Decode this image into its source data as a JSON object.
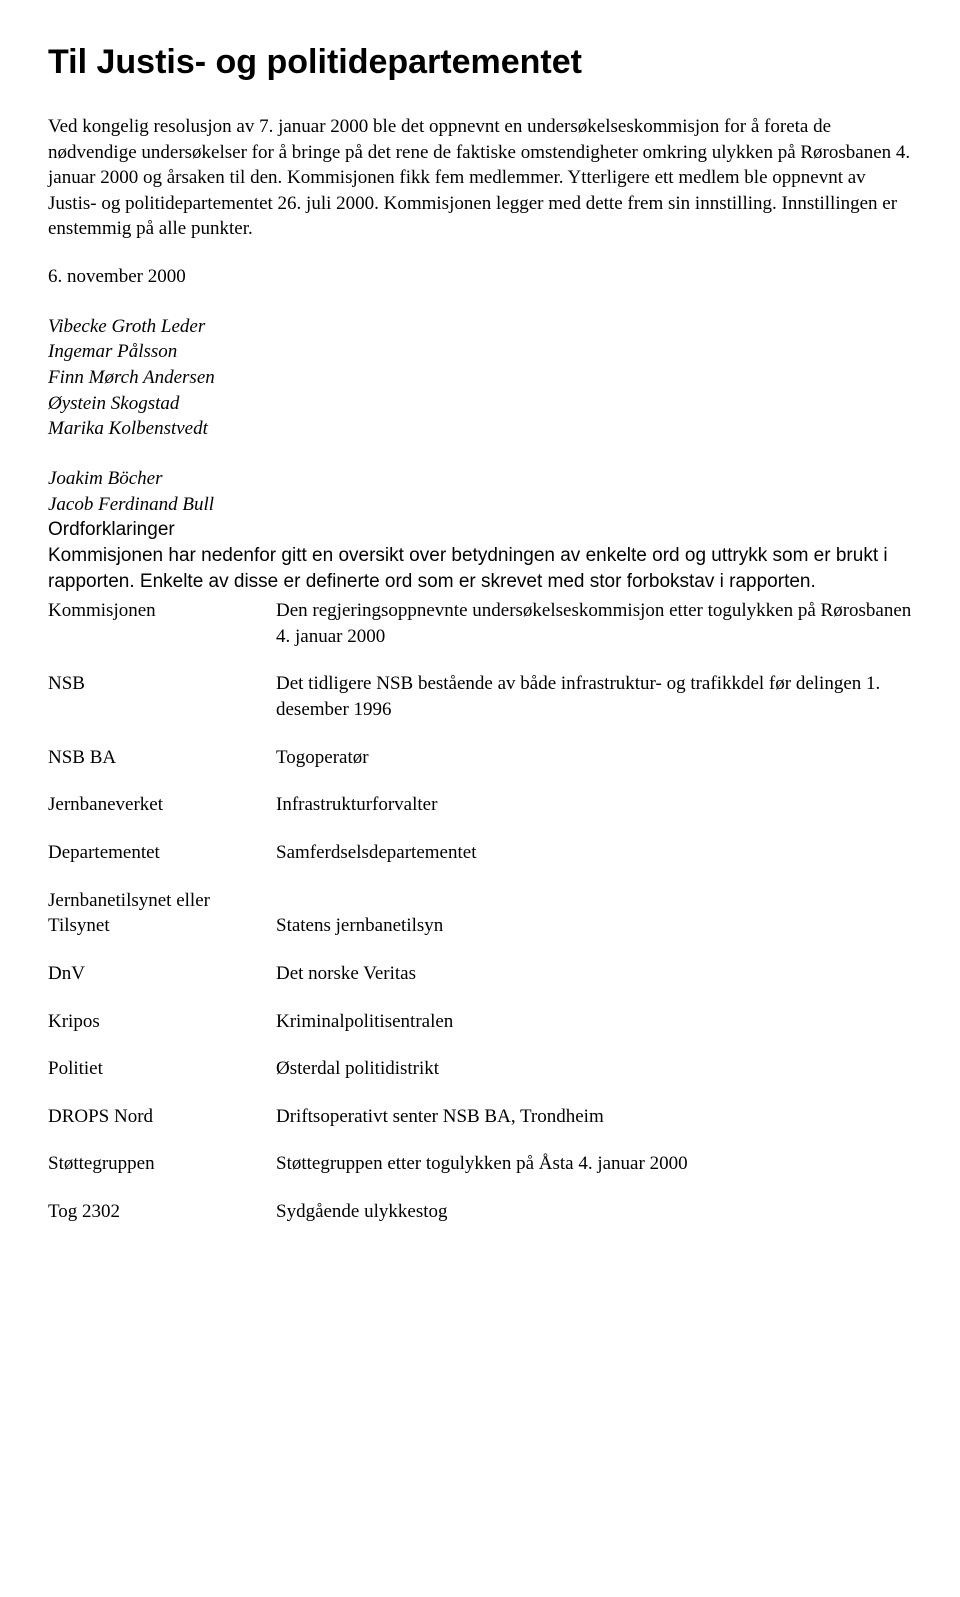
{
  "title": "Til Justis- og politidepartementet",
  "para1": "Ved kongelig resolusjon av 7. januar 2000 ble det oppnevnt en undersøkelseskommisjon for å foreta de nødvendige undersøkelser for å bringe på det rene de faktiske omstendigheter omkring ulykken på Rørosbanen 4. januar 2000 og årsaken til den. Kommisjonen fikk fem medlemmer. Ytterligere ett medlem ble oppnevnt av Justis- og politidepartementet 26. juli 2000. Kommisjonen legger med dette frem sin innstilling. Innstillingen er enstemmig på alle punkter.",
  "date": "6. november 2000",
  "namesA": [
    "Vibecke Groth Leder",
    "Ingemar Pålsson",
    "Finn Mørch Andersen",
    "Øystein Skogstad",
    "Marika Kolbenstvedt"
  ],
  "namesB": [
    "Joakim Böcher",
    "Jacob Ferdinand Bull"
  ],
  "ordforklaringer_label": "Ordforklaringer",
  "intro2a": "Kommisjonen har nedenfor gitt en oversikt over betydningen av enkelte ord og uttrykk som er brukt i rapporten. Enkelte av disse er definerte ord som er skrevet med stor forbokstav i rapporten.",
  "defs": [
    {
      "term": "Kommisjonen",
      "def": "Den regjeringsoppnevnte undersøkelseskommisjon etter togulykken på Rørosbanen 4. januar 2000"
    },
    {
      "term": "NSB",
      "def": "Det tidligere NSB bestående av både infrastruktur- og trafikkdel før delingen 1. desember 1996"
    },
    {
      "term": "NSB BA",
      "def": "Togoperatør"
    },
    {
      "term": "Jernbaneverket",
      "def": "Infrastrukturforvalter"
    },
    {
      "term": "Departementet",
      "def": "Samferdselsdepartementet"
    },
    {
      "term": "Jernbanetilsynet eller Tilsynet",
      "def": "Statens jernbanetilsyn"
    },
    {
      "term": "DnV",
      "def": "Det norske Veritas"
    },
    {
      "term": "Kripos",
      "def": "Kriminalpolitisentralen"
    },
    {
      "term": "Politiet",
      "def": "Østerdal politidistrikt"
    },
    {
      "term": "DROPS Nord",
      "def": "Driftsoperativt senter NSB BA, Trondheim"
    },
    {
      "term": "Støttegruppen",
      "def": "Støttegruppen etter togulykken på Åsta 4. januar 2000"
    },
    {
      "term": "Tog 2302",
      "def": "Sydgående ulykkestog"
    }
  ]
}
